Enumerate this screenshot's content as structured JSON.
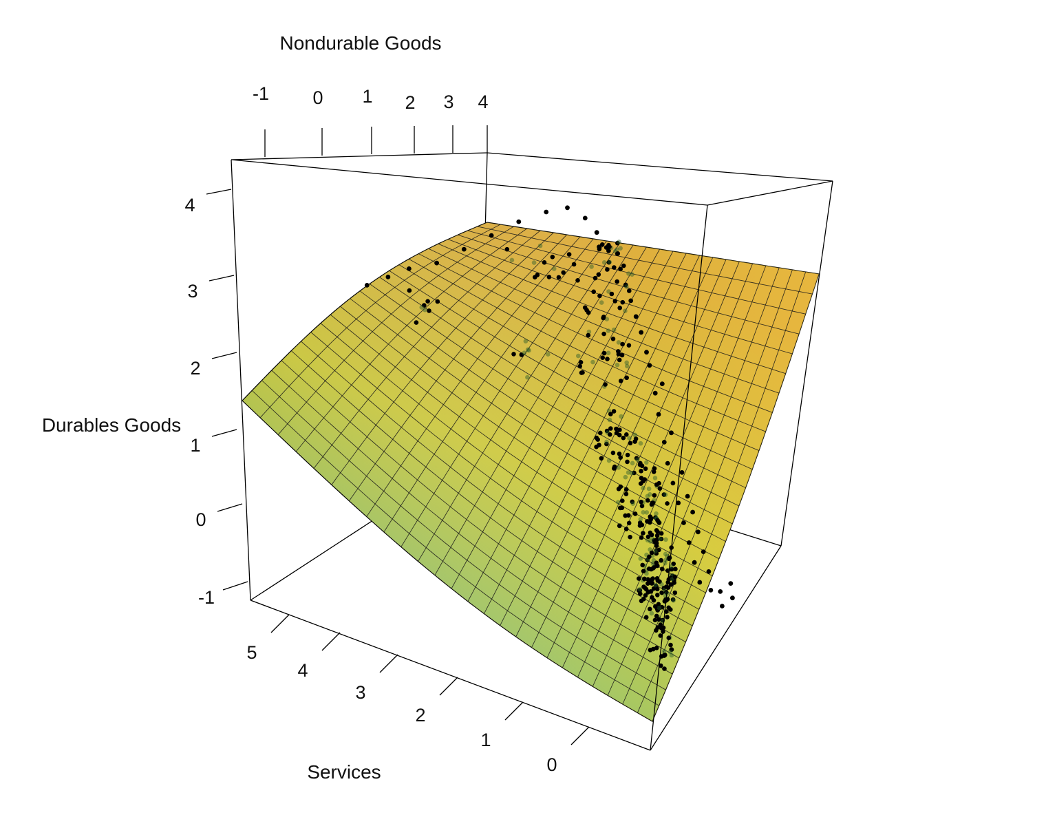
{
  "chart_data": {
    "type": "scatter",
    "subtype": "3d-scatter-with-fitted-surface",
    "title": "",
    "xlabel": "Services",
    "ylabel": "Nondurable Goods",
    "zlabel": "Durables Goods",
    "x_ticks": [
      "0",
      "1",
      "2",
      "3",
      "4",
      "5"
    ],
    "y_ticks": [
      "-1",
      "0",
      "1",
      "2",
      "3",
      "4"
    ],
    "z_ticks": [
      "-1",
      "0",
      "1",
      "2",
      "3",
      "4"
    ],
    "xlim": [
      -0.5,
      5.5
    ],
    "ylim": [
      -1.5,
      4.2
    ],
    "zlim": [
      -1.2,
      4.3
    ],
    "grid": false,
    "legend": "none",
    "colors": {
      "surface_low": "#3a8c9c",
      "surface_mid": "#9cc96a",
      "surface_high_left": "#c8c030",
      "surface_high_right": "#f0d040",
      "surface_top": "#d89a3a",
      "surface_grid": "#1a1a1a",
      "points": "#000000",
      "box": "#000000"
    },
    "surface": {
      "description_of_shape": "fitted response surface of durables on services and nondurables",
      "corner_values": {
        "services_high_nondurable_low": 1.5,
        "services_high_nondurable_high": 4.0,
        "services_low_nondurable_low": -1.1,
        "services_low_nondurable_high": 3.2
      }
    },
    "points": [
      {
        "services": 0.2,
        "nondurable": 1.5,
        "durables": -0.6
      },
      {
        "services": 0.3,
        "nondurable": 1.4,
        "durables": -0.4
      },
      {
        "services": 0.1,
        "nondurable": 1.6,
        "durables": -0.5
      },
      {
        "services": 0.4,
        "nondurable": 1.3,
        "durables": -0.3
      },
      {
        "services": 0.25,
        "nondurable": 1.55,
        "durables": -0.45
      },
      {
        "services": 0.35,
        "nondurable": 1.45,
        "durables": -0.2
      },
      {
        "services": 0.15,
        "nondurable": 1.65,
        "durables": -0.35
      },
      {
        "services": 0.5,
        "nondurable": 1.35,
        "durables": -0.1
      },
      {
        "services": 0.45,
        "nondurable": 1.5,
        "durables": 0.0
      },
      {
        "services": 0.6,
        "nondurable": 1.4,
        "durables": 0.1
      },
      {
        "services": 0.55,
        "nondurable": 1.55,
        "durables": 0.2
      },
      {
        "services": 0.7,
        "nondurable": 1.45,
        "durables": 0.3
      },
      {
        "services": 0.65,
        "nondurable": 1.6,
        "durables": 0.4
      },
      {
        "services": 0.8,
        "nondurable": 1.5,
        "durables": 0.5
      },
      {
        "services": 0.75,
        "nondurable": 1.65,
        "durables": 0.55
      },
      {
        "services": 0.9,
        "nondurable": 1.55,
        "durables": 0.7
      },
      {
        "services": 0.85,
        "nondurable": 1.7,
        "durables": 0.8
      },
      {
        "services": 1.0,
        "nondurable": 1.6,
        "durables": 0.9
      },
      {
        "services": 1.1,
        "nondurable": 1.7,
        "durables": 1.1
      },
      {
        "services": 1.05,
        "nondurable": 1.8,
        "durables": 1.2
      },
      {
        "services": 1.2,
        "nondurable": 1.75,
        "durables": 1.4
      },
      {
        "services": 1.3,
        "nondurable": 1.85,
        "durables": 1.6
      },
      {
        "services": 1.25,
        "nondurable": 1.95,
        "durables": 1.7
      },
      {
        "services": 1.4,
        "nondurable": 1.9,
        "durables": 1.9
      },
      {
        "services": 1.5,
        "nondurable": 2.0,
        "durables": 2.0
      },
      {
        "services": 1.6,
        "nondurable": 2.05,
        "durables": 2.2
      },
      {
        "services": 1.7,
        "nondurable": 2.1,
        "durables": 2.35
      },
      {
        "services": 1.8,
        "nondurable": 2.15,
        "durables": 2.5
      },
      {
        "services": 1.9,
        "nondurable": 2.2,
        "durables": 2.65
      },
      {
        "services": 2.0,
        "nondurable": 2.25,
        "durables": 2.8
      },
      {
        "services": 2.2,
        "nondurable": 2.3,
        "durables": 2.95
      },
      {
        "services": 2.4,
        "nondurable": 2.35,
        "durables": 3.1
      },
      {
        "services": 2.6,
        "nondurable": 2.4,
        "durables": 3.2
      },
      {
        "services": 2.8,
        "nondurable": 2.3,
        "durables": 3.3
      },
      {
        "services": 3.0,
        "nondurable": 2.1,
        "durables": 3.25
      },
      {
        "services": 3.3,
        "nondurable": 1.9,
        "durables": 3.1
      },
      {
        "services": 3.6,
        "nondurable": 1.7,
        "durables": 2.9
      },
      {
        "services": 3.9,
        "nondurable": 1.5,
        "durables": 2.7
      },
      {
        "services": 4.2,
        "nondurable": 1.3,
        "durables": 2.5
      },
      {
        "services": 4.5,
        "nondurable": 1.1,
        "durables": 2.4
      },
      {
        "services": 4.7,
        "nondurable": 0.9,
        "durables": 2.3
      },
      {
        "services": 4.9,
        "nondurable": 0.7,
        "durables": 2.2
      }
    ]
  },
  "labels": {
    "nondurable_axis": "Nondurable Goods",
    "durables_axis": "Durables Goods",
    "services_axis": "Services"
  }
}
